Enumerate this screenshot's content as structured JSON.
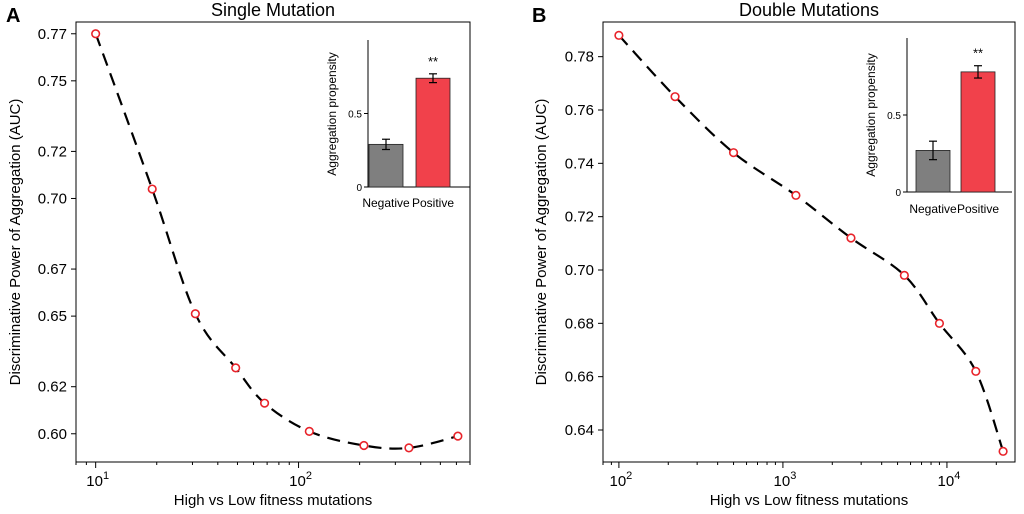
{
  "chart_data": [
    {
      "panel_label": "A",
      "type": "line",
      "title": "Single Mutation",
      "xlabel": "High vs Low fitness mutations",
      "ylabel": "Discriminative Power of Aggregation (AUC)",
      "xscale": "log",
      "xlim": [
        8,
        700
      ],
      "xticks": [
        {
          "value": 10,
          "base": "10",
          "exp": "1"
        },
        {
          "value": 100,
          "base": "10",
          "exp": "2"
        }
      ],
      "ylim": [
        0.588,
        0.775
      ],
      "yticks": [
        "0.60",
        "0.62",
        "0.65",
        "0.67",
        "0.70",
        "0.72",
        "0.75",
        "0.77"
      ],
      "ytick_values": [
        0.6,
        0.62,
        0.65,
        0.67,
        0.7,
        0.72,
        0.75,
        0.77
      ],
      "line_style": "dashed",
      "marker": "open circle",
      "marker_color": "#e8232a",
      "x": [
        10,
        19,
        31,
        49,
        68,
        113,
        210,
        350,
        610
      ],
      "y": [
        0.77,
        0.704,
        0.651,
        0.628,
        0.613,
        0.601,
        0.595,
        0.594,
        0.599
      ],
      "inset": {
        "type": "bar",
        "categories": [
          "Negative",
          "Positive"
        ],
        "values": [
          0.29,
          0.74
        ],
        "errors": [
          0.035,
          0.03
        ],
        "colors": [
          "#7f7f7f",
          "#f1414b"
        ],
        "ylabel": "Aggregation propensity",
        "ylim": [
          0,
          1.0
        ],
        "yticks": [
          "0",
          "0.5"
        ],
        "ytick_values": [
          0,
          0.5
        ],
        "annotation": "**"
      }
    },
    {
      "panel_label": "B",
      "type": "line",
      "title": "Double Mutations",
      "xlabel": "High vs Low fitness mutations",
      "ylabel": "Discriminative Power of Aggregation (AUC)",
      "xscale": "log",
      "xlim": [
        80,
        26000
      ],
      "xticks": [
        {
          "value": 100,
          "base": "10",
          "exp": "2"
        },
        {
          "value": 1000,
          "base": "10",
          "exp": "3"
        },
        {
          "value": 10000,
          "base": "10",
          "exp": "4"
        }
      ],
      "ylim": [
        0.628,
        0.793
      ],
      "yticks": [
        "0.64",
        "0.66",
        "0.68",
        "0.70",
        "0.72",
        "0.74",
        "0.76",
        "0.78"
      ],
      "ytick_values": [
        0.64,
        0.66,
        0.68,
        0.7,
        0.72,
        0.74,
        0.76,
        0.78
      ],
      "line_style": "dashed",
      "marker": "open circle",
      "marker_color": "#e8232a",
      "x": [
        100,
        220,
        500,
        1200,
        2600,
        5500,
        9000,
        15000,
        22000
      ],
      "y": [
        0.788,
        0.765,
        0.744,
        0.728,
        0.712,
        0.698,
        0.68,
        0.662,
        0.632
      ],
      "inset": {
        "type": "bar",
        "categories": [
          "Negative",
          "Positive"
        ],
        "values": [
          0.27,
          0.78
        ],
        "errors": [
          0.06,
          0.04
        ],
        "colors": [
          "#7f7f7f",
          "#f1414b"
        ],
        "ylabel": "Aggregation propensity",
        "ylim": [
          0,
          1.0
        ],
        "yticks": [
          "0",
          "0.5"
        ],
        "ytick_values": [
          0,
          0.5
        ],
        "annotation": "**"
      }
    }
  ]
}
